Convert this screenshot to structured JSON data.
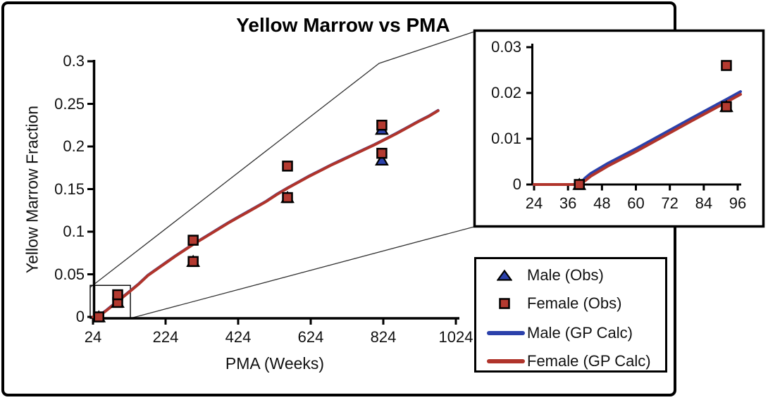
{
  "chart_data": {
    "type": "scatter",
    "title": "Yellow Marrow vs PMA",
    "xlabel": "PMA (Weeks)",
    "ylabel": "Yellow Marrow Fraction",
    "main_axes": {
      "xlim": [
        24,
        1044
      ],
      "ylim": [
        0,
        0.3
      ],
      "xticks": [
        24,
        224,
        424,
        624,
        824,
        1024
      ],
      "xtick_labels": [
        "24",
        "224",
        "424",
        "624",
        "824",
        "1024"
      ],
      "yticks": [
        0,
        0.05,
        0.1,
        0.15,
        0.2,
        0.25,
        0.3
      ],
      "ytick_labels": [
        "0",
        "0.05",
        "0.1",
        "0.15",
        "0.2",
        "0.25",
        "0.3"
      ],
      "grid": false
    },
    "inset_axes": {
      "xlim": [
        24,
        98
      ],
      "ylim": [
        0,
        0.03
      ],
      "xticks": [
        24,
        36,
        48,
        60,
        72,
        84,
        96
      ],
      "xtick_labels": [
        "24",
        "36",
        "48",
        "60",
        "72",
        "84",
        "96"
      ],
      "yticks": [
        0,
        0.01,
        0.02,
        0.03
      ],
      "ytick_labels": [
        "0",
        "0.01",
        "0.02",
        "0.03"
      ],
      "grid": false
    },
    "zoom_region": {
      "x": [
        24,
        127
      ],
      "y": [
        0,
        0.037
      ]
    },
    "series": [
      {
        "name": "Male (Obs)",
        "kind": "scatter",
        "marker": "triangle",
        "color": "#2B41AB",
        "points": [
          [
            40,
            0
          ],
          [
            92,
            0.017
          ],
          [
            300,
            0.065
          ],
          [
            560,
            0.14
          ],
          [
            820,
            0.184
          ],
          [
            820,
            0.22
          ]
        ]
      },
      {
        "name": "Female (Obs)",
        "kind": "scatter",
        "marker": "square",
        "color": "#B43A30",
        "points": [
          [
            40,
            0
          ],
          [
            92,
            0.017
          ],
          [
            92,
            0.026
          ],
          [
            300,
            0.065
          ],
          [
            300,
            0.09
          ],
          [
            560,
            0.14
          ],
          [
            560,
            0.177
          ],
          [
            820,
            0.192
          ],
          [
            820,
            0.225
          ]
        ]
      },
      {
        "name": "Male (GP Calc)",
        "kind": "line",
        "color": "#2B41AB",
        "points": [
          [
            24,
            0
          ],
          [
            40,
            0
          ],
          [
            42,
            0.0014
          ],
          [
            44,
            0.0024
          ],
          [
            50,
            0.0046
          ],
          [
            60,
            0.0078
          ],
          [
            70,
            0.0112
          ],
          [
            80,
            0.0146
          ],
          [
            92,
            0.0186
          ],
          [
            97,
            0.0203
          ],
          [
            110,
            0.0251
          ],
          [
            130,
            0.0321
          ],
          [
            150,
            0.0391
          ],
          [
            175,
            0.0491
          ],
          [
            200,
            0.0566
          ],
          [
            225,
            0.0641
          ],
          [
            250,
            0.0716
          ],
          [
            275,
            0.0786
          ],
          [
            300,
            0.0856
          ],
          [
            325,
            0.0921
          ],
          [
            350,
            0.0986
          ],
          [
            375,
            0.1051
          ],
          [
            400,
            0.1116
          ],
          [
            425,
            0.1176
          ],
          [
            450,
            0.1236
          ],
          [
            475,
            0.1296
          ],
          [
            500,
            0.1356
          ],
          [
            530,
            0.1441
          ],
          [
            560,
            0.1516
          ],
          [
            590,
            0.1586
          ],
          [
            620,
            0.1656
          ],
          [
            650,
            0.1721
          ],
          [
            680,
            0.1786
          ],
          [
            710,
            0.1846
          ],
          [
            740,
            0.1906
          ],
          [
            770,
            0.1966
          ],
          [
            800,
            0.2026
          ],
          [
            830,
            0.2091
          ],
          [
            860,
            0.2156
          ],
          [
            890,
            0.2226
          ],
          [
            920,
            0.2296
          ],
          [
            950,
            0.2361
          ],
          [
            975,
            0.2426
          ]
        ]
      },
      {
        "name": "Female (GP Calc)",
        "kind": "line",
        "color": "#B0342B",
        "points": [
          [
            24,
            0
          ],
          [
            40,
            0
          ],
          [
            42,
            0.0008
          ],
          [
            44,
            0.0018
          ],
          [
            50,
            0.004
          ],
          [
            60,
            0.0072
          ],
          [
            70,
            0.0106
          ],
          [
            80,
            0.014
          ],
          [
            92,
            0.018
          ],
          [
            97,
            0.0197
          ],
          [
            110,
            0.0245
          ],
          [
            130,
            0.0315
          ],
          [
            150,
            0.0385
          ],
          [
            175,
            0.0485
          ],
          [
            200,
            0.056
          ],
          [
            225,
            0.0635
          ],
          [
            250,
            0.071
          ],
          [
            275,
            0.078
          ],
          [
            300,
            0.085
          ],
          [
            325,
            0.0915
          ],
          [
            350,
            0.098
          ],
          [
            375,
            0.1045
          ],
          [
            400,
            0.111
          ],
          [
            425,
            0.117
          ],
          [
            450,
            0.123
          ],
          [
            475,
            0.129
          ],
          [
            500,
            0.135
          ],
          [
            530,
            0.1435
          ],
          [
            560,
            0.151
          ],
          [
            590,
            0.158
          ],
          [
            620,
            0.165
          ],
          [
            650,
            0.1715
          ],
          [
            680,
            0.178
          ],
          [
            710,
            0.184
          ],
          [
            740,
            0.19
          ],
          [
            770,
            0.196
          ],
          [
            800,
            0.202
          ],
          [
            830,
            0.2085
          ],
          [
            860,
            0.215
          ],
          [
            890,
            0.222
          ],
          [
            920,
            0.229
          ],
          [
            950,
            0.2355
          ],
          [
            975,
            0.242
          ]
        ]
      }
    ]
  },
  "legend": {
    "position": "bottom-right",
    "items": [
      {
        "label": "Male (Obs)",
        "marker": "triangle",
        "color": "#2B41AB"
      },
      {
        "label": "Female (Obs)",
        "marker": "square",
        "color": "#B43A30"
      },
      {
        "label": "Male (GP Calc)",
        "marker": "line",
        "color": "#2B41AB"
      },
      {
        "label": "Female (GP Calc)",
        "marker": "line",
        "color": "#B0342B"
      }
    ]
  }
}
